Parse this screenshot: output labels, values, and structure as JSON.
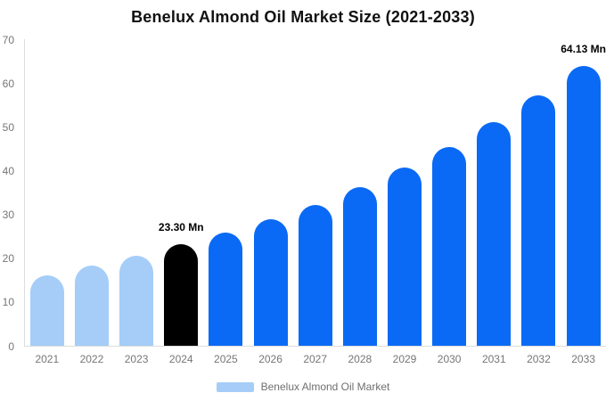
{
  "title": "Benelux Almond Oil Market Size (2021-2033)",
  "colors": {
    "historical_bar": "#a5cdf8",
    "base_year_bar": "#000000",
    "forecast_bar": "#0a6af5",
    "axis_line": "#dcdcdc",
    "tick_label": "#767676",
    "annotation_text": "#000000"
  },
  "legend": {
    "label": "Benelux Almond Oil Market",
    "color": "#a5cdf8"
  },
  "chart_data": {
    "type": "bar",
    "title": "Benelux Almond Oil Market Size (2021-2033)",
    "categories": [
      "2021",
      "2022",
      "2023",
      "2024",
      "2025",
      "2026",
      "2027",
      "2028",
      "2029",
      "2030",
      "2031",
      "2032",
      "2033"
    ],
    "values": [
      16.3,
      18.4,
      20.7,
      23.3,
      25.9,
      29.1,
      32.2,
      36.4,
      40.9,
      45.5,
      51.2,
      57.3,
      64.13
    ],
    "unit": "Mn",
    "bar_colors": [
      "#a5cdf8",
      "#a5cdf8",
      "#a5cdf8",
      "#000000",
      "#0a6af5",
      "#0a6af5",
      "#0a6af5",
      "#0a6af5",
      "#0a6af5",
      "#0a6af5",
      "#0a6af5",
      "#0a6af5",
      "#0a6af5"
    ],
    "annotations": [
      {
        "category": "2024",
        "text": "23.30 Mn"
      },
      {
        "category": "2033",
        "text": "64.13 Mn"
      }
    ],
    "xlabel": "",
    "ylabel": "",
    "ylim": [
      0,
      70
    ],
    "yticks": [
      0,
      10,
      20,
      30,
      40,
      50,
      60,
      70
    ],
    "grid": false,
    "legend_position": "bottom",
    "legend_entries": [
      {
        "label": "Benelux Almond Oil Market",
        "color": "#a5cdf8"
      }
    ]
  }
}
